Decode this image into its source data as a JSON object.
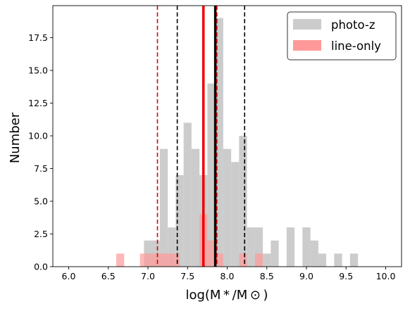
{
  "chart_data": {
    "type": "histogram",
    "xlabel": "log(M * /M ⊙ )",
    "ylabel": "Number",
    "xlim": [
      5.8,
      10.2
    ],
    "ylim": [
      0,
      19.95
    ],
    "xticks": [
      "6.0",
      "6.5",
      "7.0",
      "7.5",
      "8.0",
      "8.5",
      "9.0",
      "9.5",
      "10.0"
    ],
    "yticks": [
      "0.0",
      "2.5",
      "5.0",
      "7.5",
      "10.0",
      "12.5",
      "15.0",
      "17.5"
    ],
    "legend": {
      "location": "upper right",
      "photoz_label": "photo-z",
      "lineonly_label": "line-only"
    },
    "bin_width": 0.1,
    "series": [
      {
        "name": "photo-z",
        "color": "#cccccc",
        "bins": [
          {
            "x0": 6.95,
            "count": 2
          },
          {
            "x0": 7.05,
            "count": 2
          },
          {
            "x0": 7.15,
            "count": 9
          },
          {
            "x0": 7.25,
            "count": 3
          },
          {
            "x0": 7.35,
            "count": 7
          },
          {
            "x0": 7.45,
            "count": 11
          },
          {
            "x0": 7.55,
            "count": 9
          },
          {
            "x0": 7.65,
            "count": 7
          },
          {
            "x0": 7.75,
            "count": 14
          },
          {
            "x0": 7.85,
            "count": 19
          },
          {
            "x0": 7.95,
            "count": 9
          },
          {
            "x0": 8.05,
            "count": 8
          },
          {
            "x0": 8.15,
            "count": 10
          },
          {
            "x0": 8.25,
            "count": 3
          },
          {
            "x0": 8.35,
            "count": 3
          },
          {
            "x0": 8.45,
            "count": 1
          },
          {
            "x0": 8.55,
            "count": 2
          },
          {
            "x0": 8.75,
            "count": 3
          },
          {
            "x0": 8.95,
            "count": 3
          },
          {
            "x0": 9.05,
            "count": 2
          },
          {
            "x0": 9.15,
            "count": 1
          },
          {
            "x0": 9.35,
            "count": 1
          },
          {
            "x0": 9.55,
            "count": 1
          }
        ]
      },
      {
        "name": "line-only",
        "color": "#ff9999",
        "bins": [
          {
            "x0": 6.6,
            "count": 1
          },
          {
            "x0": 6.9,
            "count": 1
          },
          {
            "x0": 7.0,
            "count": 1
          },
          {
            "x0": 7.1,
            "count": 1
          },
          {
            "x0": 7.2,
            "count": 1
          },
          {
            "x0": 7.3,
            "count": 1
          },
          {
            "x0": 7.65,
            "count": 4
          },
          {
            "x0": 7.75,
            "count": 2
          },
          {
            "x0": 7.85,
            "count": 1
          },
          {
            "x0": 8.15,
            "count": 1
          },
          {
            "x0": 8.35,
            "count": 1
          }
        ]
      }
    ],
    "vlines": [
      {
        "x": 7.12,
        "color": "#dd0000",
        "style": "dashed"
      },
      {
        "x": 7.37,
        "color": "#000000",
        "style": "dashed"
      },
      {
        "x": 7.7,
        "color": "#ee0000",
        "style": "solid"
      },
      {
        "x": 7.85,
        "color": "#000000",
        "style": "solid"
      },
      {
        "x": 7.87,
        "color": "#dd0000",
        "style": "dashed"
      },
      {
        "x": 8.22,
        "color": "#000000",
        "style": "dashed"
      }
    ]
  }
}
